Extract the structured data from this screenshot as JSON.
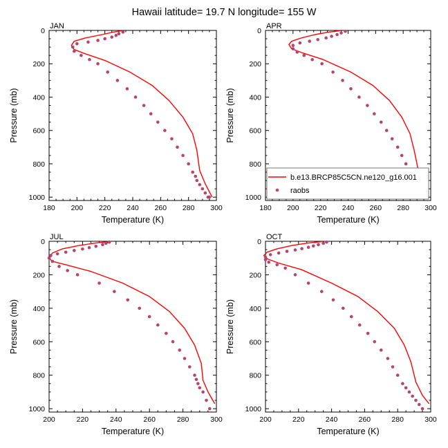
{
  "title": "Hawaii  latitude= 19.7 N longitude= 155 W",
  "colors": {
    "model": "#ff0000",
    "raobs": "#b5446e",
    "axis": "#000000"
  },
  "legend": {
    "model": "b.e13.BRCP85C5CN.ne120_g16.001",
    "obs": "raobs"
  },
  "chart_data": [
    {
      "type": "line",
      "panel": "JAN",
      "xlabel": "Temperature (K)",
      "ylabel": "Pressure (mb)",
      "xlim": [
        180,
        300
      ],
      "ylim": [
        1020,
        0
      ],
      "x_ticks": [
        180,
        200,
        220,
        240,
        260,
        280,
        300
      ],
      "y_ticks": [
        0,
        200,
        400,
        600,
        800,
        1000
      ],
      "series": [
        {
          "name": "b.e13.BRCP85C5CN.ne120_g16.001",
          "style": "line",
          "x": [
            232,
            226,
            218,
            206,
            198,
            196,
            198,
            206,
            220,
            238,
            254,
            266,
            276,
            283,
            286,
            288,
            292,
            297
          ],
          "y": [
            2,
            10,
            25,
            45,
            65,
            90,
            115,
            140,
            180,
            250,
            330,
            420,
            520,
            620,
            720,
            840,
            920,
            1000
          ]
        },
        {
          "name": "raobs",
          "style": "markers",
          "x": [
            233,
            230,
            228,
            225,
            220,
            215,
            208,
            200,
            197,
            198,
            203,
            209,
            215,
            222,
            229,
            236,
            242,
            248,
            253,
            258,
            263,
            268,
            272,
            276,
            280,
            283,
            285,
            286,
            288,
            290,
            292,
            294,
            295
          ],
          "y": [
            10,
            20,
            30,
            40,
            50,
            60,
            70,
            80,
            100,
            125,
            150,
            175,
            200,
            250,
            300,
            350,
            400,
            450,
            500,
            550,
            600,
            650,
            700,
            750,
            800,
            850,
            875,
            900,
            925,
            950,
            975,
            1000,
            1000
          ]
        }
      ]
    },
    {
      "type": "line",
      "panel": "APR",
      "xlabel": "Temperature (K)",
      "ylabel": "Pressure (mb)",
      "xlim": [
        180,
        300
      ],
      "ylim": [
        1020,
        0
      ],
      "x_ticks": [
        180,
        200,
        220,
        240,
        260,
        280,
        300
      ],
      "y_ticks": [
        0,
        200,
        400,
        600,
        800,
        1000
      ],
      "series": [
        {
          "name": "b.e13.BRCP85C5CN.ne120_g16.001",
          "style": "line",
          "x": [
            234,
            226,
            216,
            206,
            199,
            197,
            199,
            207,
            222,
            242,
            258,
            270,
            279,
            285,
            288,
            291,
            294,
            298
          ],
          "y": [
            2,
            10,
            25,
            45,
            65,
            85,
            110,
            135,
            175,
            250,
            330,
            420,
            520,
            620,
            720,
            840,
            920,
            990
          ]
        },
        {
          "name": "raobs",
          "style": "markers",
          "x": [
            238,
            235,
            232,
            228,
            224,
            218,
            212,
            205,
            200,
            200,
            203,
            208,
            214,
            221,
            229,
            236,
            242,
            248,
            254,
            259,
            264,
            268,
            272,
            276,
            279,
            282,
            284,
            286,
            288,
            290,
            292,
            294,
            296
          ],
          "y": [
            5,
            15,
            25,
            35,
            45,
            55,
            65,
            75,
            90,
            110,
            130,
            150,
            175,
            200,
            250,
            300,
            350,
            400,
            450,
            500,
            550,
            600,
            650,
            700,
            750,
            800,
            850,
            875,
            900,
            925,
            950,
            975,
            1000
          ]
        }
      ]
    },
    {
      "type": "line",
      "panel": "JUL",
      "xlabel": "Temperature (K)",
      "ylabel": "Pressure (mb)",
      "xlim": [
        200,
        300
      ],
      "ylim": [
        1020,
        0
      ],
      "x_ticks": [
        200,
        220,
        240,
        260,
        280,
        300
      ],
      "y_ticks": [
        0,
        200,
        400,
        600,
        800,
        1000
      ],
      "series": [
        {
          "name": "b.e13.BRCP85C5CN.ne120_g16.001",
          "style": "line",
          "x": [
            236,
            228,
            218,
            208,
            202,
            200,
            202,
            210,
            225,
            244,
            260,
            272,
            281,
            287,
            291,
            292,
            295,
            299
          ],
          "y": [
            2,
            10,
            25,
            45,
            70,
            100,
            120,
            140,
            180,
            250,
            330,
            420,
            520,
            620,
            730,
            830,
            900,
            970
          ]
        },
        {
          "name": "raobs",
          "style": "markers",
          "x": [
            236,
            234,
            232,
            228,
            224,
            220,
            215,
            210,
            205,
            201,
            200,
            202,
            206,
            211,
            217,
            230,
            239,
            247,
            254,
            260,
            265,
            270,
            274,
            278,
            281,
            284,
            287,
            288,
            289,
            290,
            292,
            294,
            296
          ],
          "y": [
            5,
            12,
            20,
            30,
            38,
            46,
            55,
            65,
            75,
            85,
            100,
            120,
            150,
            175,
            200,
            250,
            300,
            350,
            400,
            450,
            500,
            550,
            600,
            650,
            700,
            750,
            800,
            825,
            850,
            875,
            900,
            950,
            1000
          ]
        }
      ]
    },
    {
      "type": "line",
      "panel": "OCT",
      "xlabel": "Temperature (K)",
      "ylabel": "Pressure (mb)",
      "xlim": [
        200,
        300
      ],
      "ylim": [
        1020,
        0
      ],
      "x_ticks": [
        200,
        220,
        240,
        260,
        280,
        300
      ],
      "y_ticks": [
        0,
        200,
        400,
        600,
        800,
        1000
      ],
      "series": [
        {
          "name": "b.e13.BRCP85C5CN.ne120_g16.001",
          "style": "line",
          "x": [
            234,
            226,
            216,
            207,
            201,
            199,
            201,
            208,
            222,
            240,
            256,
            268,
            278,
            284,
            288,
            291,
            295,
            299
          ],
          "y": [
            2,
            10,
            25,
            45,
            65,
            85,
            105,
            130,
            170,
            250,
            330,
            420,
            520,
            620,
            720,
            840,
            920,
            970
          ]
        },
        {
          "name": "raobs",
          "style": "markers",
          "x": [
            237,
            235,
            232,
            229,
            226,
            222,
            218,
            213,
            208,
            203,
            200,
            200,
            202,
            207,
            212,
            218,
            226,
            234,
            241,
            247,
            252,
            257,
            262,
            266,
            270,
            274,
            277,
            280,
            283,
            285,
            287,
            289,
            291,
            293,
            295
          ],
          "y": [
            5,
            12,
            20,
            28,
            36,
            44,
            52,
            60,
            70,
            80,
            95,
            110,
            125,
            140,
            160,
            200,
            250,
            300,
            350,
            400,
            450,
            500,
            550,
            600,
            650,
            700,
            750,
            800,
            850,
            875,
            900,
            925,
            950,
            975,
            1000
          ]
        }
      ]
    }
  ]
}
